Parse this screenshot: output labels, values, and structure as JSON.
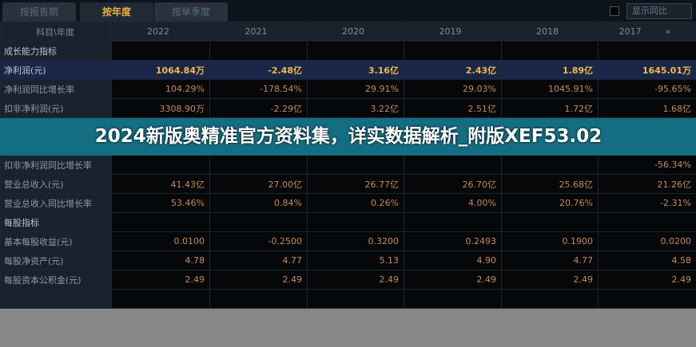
{
  "tabs": [
    "按报告期",
    "按年度",
    "按单季度"
  ],
  "active_tab": 1,
  "show_yoy_label": "显示同比",
  "header": {
    "label": "科目\\年度",
    "years": [
      "2022",
      "2021",
      "2020",
      "2019",
      "2018",
      "2017"
    ],
    "more": "»"
  },
  "rows": [
    {
      "type": "section",
      "label": "成长能力指标",
      "values": [
        "",
        "",
        "",
        "",
        "",
        ""
      ]
    },
    {
      "type": "highlight",
      "label": "净利润(元)",
      "values": [
        "1064.84万",
        "-2.48亿",
        "3.16亿",
        "2.43亿",
        "1.89亿",
        "1645.01万"
      ]
    },
    {
      "type": "normal",
      "label": "净利润同比增长率",
      "values": [
        "104.29%",
        "-178.54%",
        "29.91%",
        "29.03%",
        "1045.91%",
        "-95.65%"
      ]
    },
    {
      "type": "normal",
      "label": "扣非净利润(元)",
      "values": [
        "3308.90万",
        "-2.29亿",
        "3.22亿",
        "2.51亿",
        "1.72亿",
        "1.68亿"
      ]
    },
    {
      "type": "normal",
      "label": "扣非净利润同比增长率",
      "values": [
        "",
        "",
        "",
        "",
        "",
        "-56.34%"
      ]
    },
    {
      "type": "normal",
      "label": "营业总收入(元)",
      "values": [
        "41.43亿",
        "27.00亿",
        "26.77亿",
        "26.70亿",
        "25.68亿",
        "21.26亿"
      ]
    },
    {
      "type": "normal",
      "label": "营业总收入同比增长率",
      "values": [
        "53.46%",
        "0.84%",
        "0.26%",
        "4.00%",
        "20.76%",
        "-2.31%"
      ]
    },
    {
      "type": "section",
      "label": "每股指标",
      "values": [
        "",
        "",
        "",
        "",
        "",
        ""
      ]
    },
    {
      "type": "normal",
      "label": "基本每股收益(元)",
      "values": [
        "0.0100",
        "-0.2500",
        "0.3200",
        "0.2493",
        "0.1900",
        "0.0200"
      ]
    },
    {
      "type": "normal",
      "label": "每股净资产(元)",
      "values": [
        "4.78",
        "4.77",
        "5.13",
        "4.90",
        "4.77",
        "4.58"
      ]
    },
    {
      "type": "normal",
      "label": "每股资本公积金(元)",
      "values": [
        "2.49",
        "2.49",
        "2.49",
        "2.49",
        "2.49",
        "2.49"
      ]
    },
    {
      "type": "normal",
      "label": "",
      "values": [
        "",
        "",
        "",
        "",
        "",
        ""
      ]
    }
  ],
  "banner_title": "2024新版奥精准官方资料集，详实数据解析_附版XEF53.02",
  "colors": {
    "accent": "#f0b23c",
    "value": "#c98a5c",
    "banner": "#146e82"
  }
}
